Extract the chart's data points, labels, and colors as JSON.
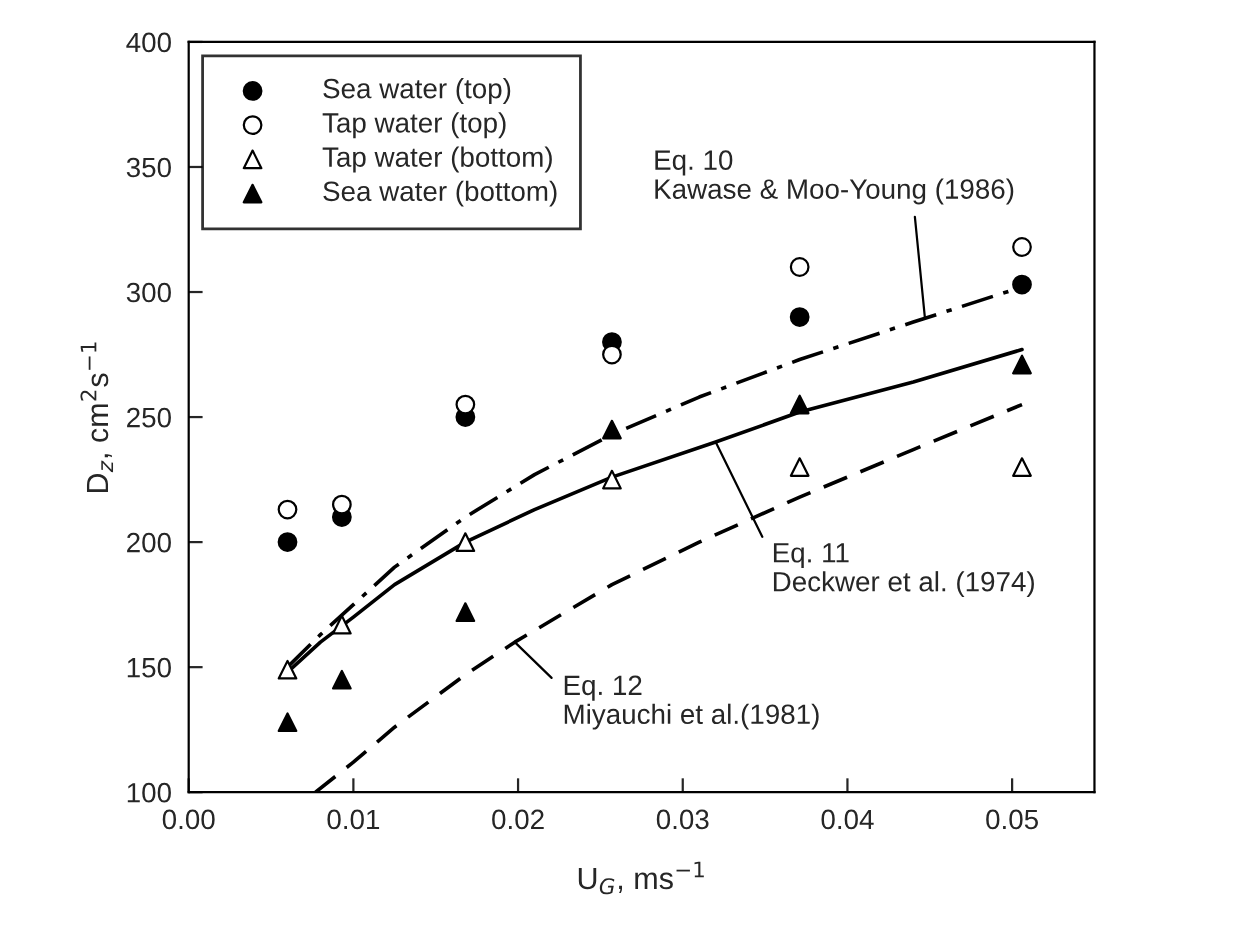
{
  "chart_data": {
    "type": "scatter",
    "xlabel": "U$_{G}$, ms$^{−1}$",
    "ylabel": "D$_{z}$, cm$^{2}$s$^{−1}$",
    "x": [
      0.006,
      0.0093,
      0.0168,
      0.0257,
      0.0371,
      0.0506
    ],
    "series": [
      {
        "name": "Sea water (top)",
        "color": "#000000",
        "marker": "circle",
        "values": [
          200,
          210,
          250,
          280,
          290,
          303
        ]
      },
      {
        "name": "Tap water (top)",
        "color": "#ffffff",
        "marker": "circle",
        "values": [
          213,
          215,
          255,
          275,
          310,
          318
        ]
      },
      {
        "name": "Tap water (bottom)",
        "color": "#ffffff",
        "marker": "triangle",
        "values": [
          149,
          167,
          200,
          225,
          230,
          230
        ]
      },
      {
        "name": "Sea water (bottom)",
        "color": "#000000",
        "marker": "triangle",
        "values": [
          128,
          145,
          172,
          245,
          255,
          271
        ]
      },
      {
        "type": "line",
        "color": "#000000",
        "line_style": "dashdot",
        "x": [
          0.006,
          0.008,
          0.01,
          0.0125,
          0.0168,
          0.021,
          0.0257,
          0.031,
          0.0371,
          0.044,
          0.0506
        ],
        "values": [
          150,
          163,
          175,
          190,
          210,
          227,
          243,
          258,
          273,
          288,
          302
        ]
      },
      {
        "type": "line",
        "color": "#000000",
        "line_style": "solid",
        "x": [
          0.006,
          0.008,
          0.01,
          0.0125,
          0.0168,
          0.021,
          0.0257,
          0.032,
          0.0371,
          0.044,
          0.0506
        ],
        "values": [
          148,
          160,
          170,
          183,
          200,
          213,
          226,
          240,
          252,
          264,
          277
        ]
      },
      {
        "type": "line",
        "color": "#000000",
        "line_style": "dashed",
        "x": [
          0.0077,
          0.01,
          0.0125,
          0.0168,
          0.0198,
          0.0257,
          0.031,
          0.0371,
          0.044,
          0.0506
        ],
        "values": [
          100,
          112,
          126,
          147,
          160,
          183,
          200,
          218,
          237,
          255
        ]
      }
    ],
    "annotations": [
      {
        "text": "Eq. 10\nKawase & Moo-Young (1986)",
        "x": 0.0447,
        "y": 290
      },
      {
        "text": "Eq. 11\nDeckwer et al. (1974)",
        "x": 0.032,
        "y": 240
      },
      {
        "text": "Eq. 12\nMiyauchi et al.(1981)",
        "x": 0.0198,
        "y": 160
      }
    ],
    "xlim": [
      0,
      0.055
    ],
    "ylim": [
      100,
      400
    ],
    "xticks": [
      {
        "value": 0,
        "label": "0.00"
      },
      0.01,
      0.02,
      0.03,
      0.04,
      0.05
    ],
    "yticks": [
      100,
      150,
      200,
      250,
      300,
      350,
      400
    ],
    "grid": false,
    "legend": "top left"
  }
}
